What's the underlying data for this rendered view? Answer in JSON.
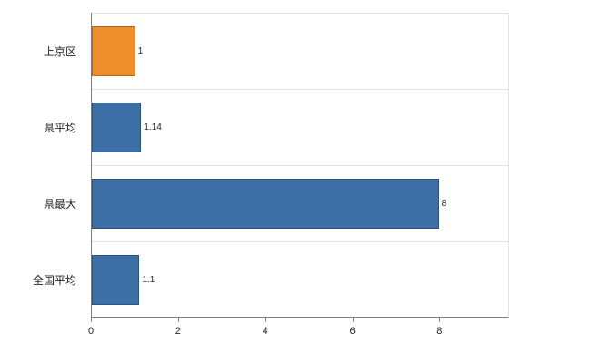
{
  "chart_data": {
    "type": "bar",
    "orientation": "horizontal",
    "title": "",
    "xlabel": "",
    "ylabel": "",
    "categories": [
      "上京区",
      "県平均",
      "県最大",
      "全国平均"
    ],
    "values": [
      1,
      1.14,
      8,
      1.1
    ],
    "value_labels": [
      "1",
      "1.14",
      "8",
      "1.1"
    ],
    "bar_colors": [
      "#ee8f2d",
      "#3c6fa5",
      "#3c6fa5",
      "#3c6fa5"
    ],
    "xticks": [
      0,
      2,
      4,
      6,
      8
    ],
    "xtick_labels": [
      "0",
      "2",
      "4",
      "6",
      "8"
    ],
    "xlim": [
      0,
      9.6
    ],
    "grid": "horizontal",
    "legend_position": "none",
    "colors": {
      "accent_orange": "#ee8f2d",
      "accent_blue": "#3c6fa5",
      "axis": "#7f7f7f",
      "gridline": "#e3e3e3",
      "text": "#262626"
    }
  }
}
